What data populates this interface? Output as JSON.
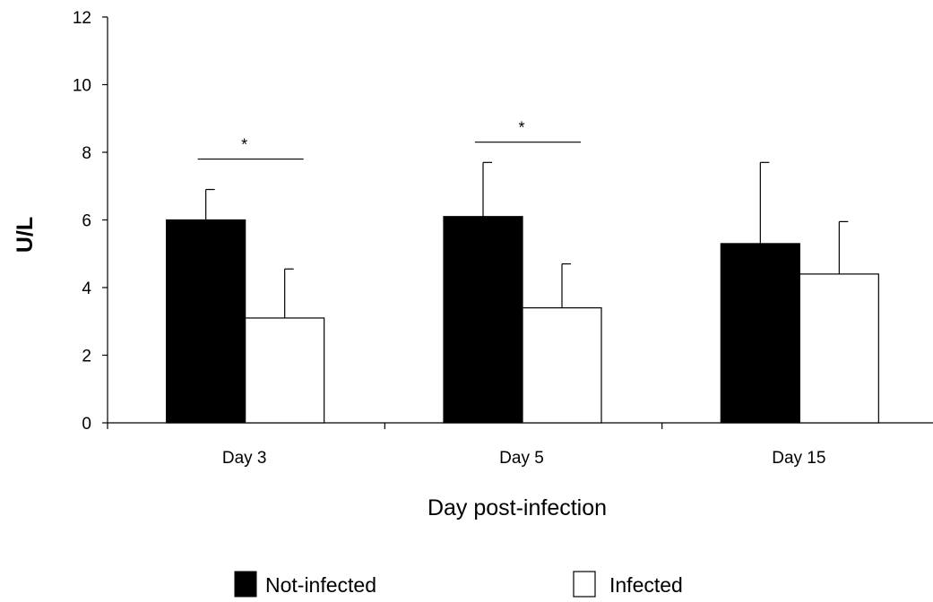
{
  "chart_data": {
    "type": "bar",
    "title": "",
    "xlabel": "Day post-infection",
    "ylabel": "U/L",
    "ylim": [
      0,
      12
    ],
    "yticks": [
      0,
      2,
      4,
      6,
      8,
      10,
      12
    ],
    "categories": [
      "Day 3",
      "Day 5",
      "Day 15"
    ],
    "series": [
      {
        "name": "Not-infected",
        "values": [
          6.0,
          6.1,
          5.3
        ],
        "errors": [
          0.9,
          1.6,
          2.4
        ],
        "color": "#000000"
      },
      {
        "name": "Infected",
        "values": [
          3.1,
          3.4,
          4.4
        ],
        "errors": [
          1.45,
          1.3,
          1.55
        ],
        "color": "#ffffff"
      }
    ],
    "significance": [
      {
        "category": "Day 3",
        "label": "*",
        "level": 7.8
      },
      {
        "category": "Day 5",
        "label": "*",
        "level": 8.3
      }
    ],
    "legend_position": "bottom",
    "grid": false
  }
}
